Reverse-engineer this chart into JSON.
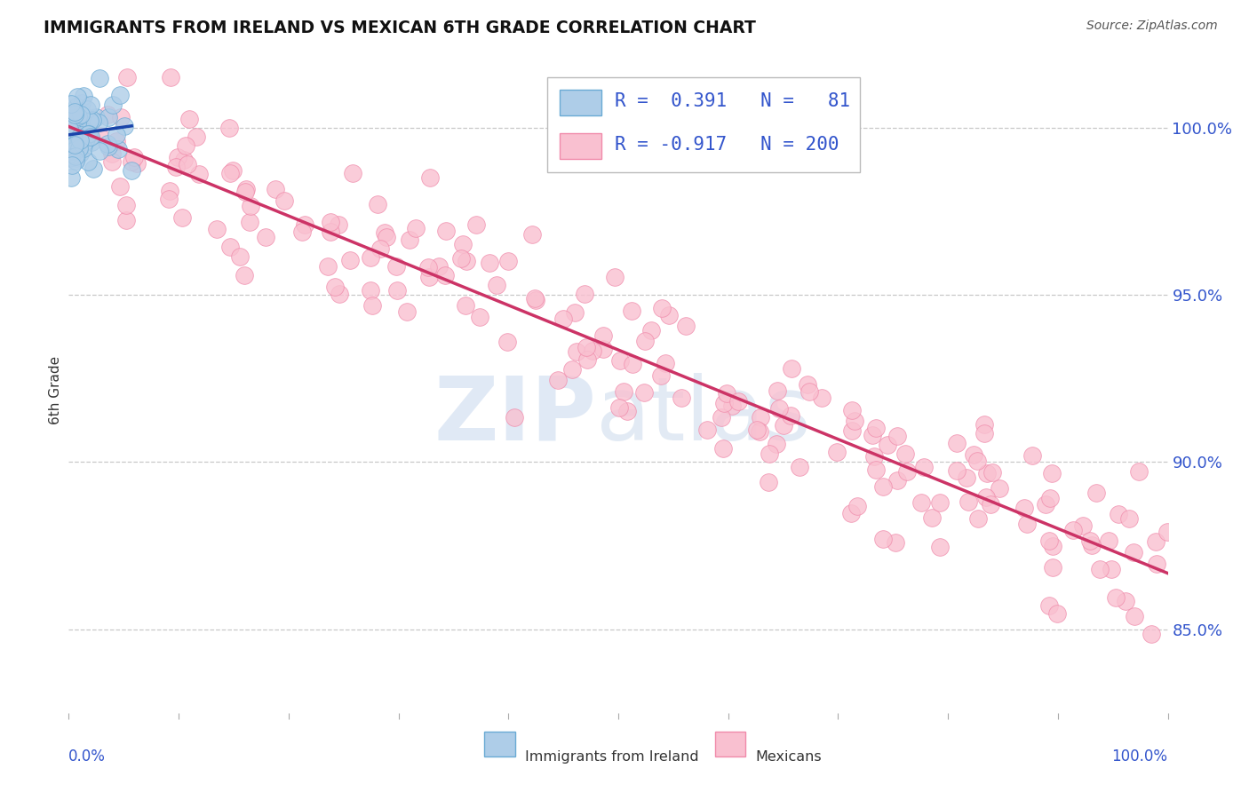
{
  "title": "IMMIGRANTS FROM IRELAND VS MEXICAN 6TH GRADE CORRELATION CHART",
  "source": "Source: ZipAtlas.com",
  "ylabel": "6th Grade",
  "right_yticks": [
    100.0,
    95.0,
    90.0,
    85.0
  ],
  "ylim_min": 82.5,
  "ylim_max": 101.8,
  "legend_ireland_R": "0.391",
  "legend_ireland_N": "81",
  "legend_mexican_R": "-0.917",
  "legend_mexican_N": "200",
  "blue_scatter_face": "#aecde8",
  "blue_scatter_edge": "#6aaad4",
  "pink_scatter_face": "#f9c0d0",
  "pink_scatter_edge": "#f08aaa",
  "blue_line_color": "#1a44aa",
  "pink_line_color": "#cc3366",
  "background_color": "#ffffff",
  "grid_color": "#c8c8c8",
  "title_color": "#111111",
  "source_color": "#555555",
  "axis_label_color": "#3355cc",
  "legend_text_color": "#3355cc"
}
